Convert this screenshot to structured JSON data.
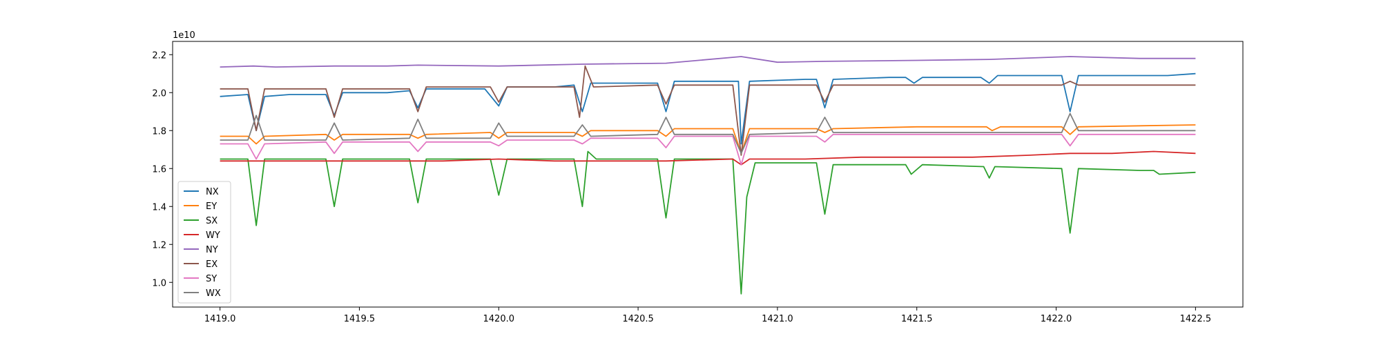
{
  "chart_data": {
    "type": "line",
    "title": "",
    "xlabel": "",
    "ylabel": "",
    "y_offset_text": "1e10",
    "y_scale": 10000000000,
    "xlim": [
      1418.83,
      1422.67
    ],
    "ylim": [
      0.87,
      2.27
    ],
    "x_ticks": [
      1419.0,
      1419.5,
      1420.0,
      1420.5,
      1421.0,
      1421.5,
      1422.0,
      1422.5
    ],
    "x_tick_labels": [
      "1419.0",
      "1419.5",
      "1420.0",
      "1420.5",
      "1421.0",
      "1421.5",
      "1422.0",
      "1422.5"
    ],
    "y_ticks": [
      1.0,
      1.2,
      1.4,
      1.6,
      1.8,
      2.0,
      2.2
    ],
    "y_tick_labels": [
      "1.0",
      "1.2",
      "1.4",
      "1.6",
      "1.8",
      "2.0",
      "2.2"
    ],
    "grid": false,
    "legend_position": "lower-left",
    "series": [
      {
        "name": "NX",
        "color": "#1f77b4",
        "x": [
          1419.0,
          1419.1,
          1419.13,
          1419.16,
          1419.25,
          1419.38,
          1419.41,
          1419.44,
          1419.6,
          1419.68,
          1419.71,
          1419.74,
          1419.95,
          1420.0,
          1420.03,
          1420.2,
          1420.27,
          1420.3,
          1420.33,
          1420.5,
          1420.57,
          1420.6,
          1420.63,
          1420.8,
          1420.86,
          1420.87,
          1420.9,
          1421.1,
          1421.14,
          1421.17,
          1421.2,
          1421.4,
          1421.46,
          1421.49,
          1421.52,
          1421.6,
          1421.73,
          1421.76,
          1421.79,
          1422.0,
          1422.02,
          1422.05,
          1422.08,
          1422.3,
          1422.4,
          1422.5
        ],
        "y": [
          1.98,
          1.99,
          1.8,
          1.98,
          1.99,
          1.99,
          1.88,
          2.0,
          2.0,
          2.01,
          1.92,
          2.02,
          2.02,
          1.93,
          2.03,
          2.03,
          2.04,
          1.9,
          2.05,
          2.05,
          2.05,
          1.9,
          2.06,
          2.06,
          2.06,
          1.73,
          2.06,
          2.07,
          2.07,
          1.92,
          2.07,
          2.08,
          2.08,
          2.05,
          2.08,
          2.08,
          2.08,
          2.05,
          2.09,
          2.09,
          2.09,
          1.9,
          2.09,
          2.09,
          2.09,
          2.1
        ]
      },
      {
        "name": "EY",
        "color": "#ff7f0e",
        "x": [
          1419.0,
          1419.1,
          1419.13,
          1419.16,
          1419.38,
          1419.41,
          1419.44,
          1419.68,
          1419.71,
          1419.74,
          1419.97,
          1420.0,
          1420.03,
          1420.27,
          1420.3,
          1420.33,
          1420.57,
          1420.6,
          1420.63,
          1420.84,
          1420.87,
          1420.9,
          1421.14,
          1421.17,
          1421.2,
          1421.5,
          1421.75,
          1421.77,
          1421.8,
          1422.02,
          1422.05,
          1422.08,
          1422.5
        ],
        "y": [
          1.77,
          1.77,
          1.73,
          1.77,
          1.78,
          1.75,
          1.78,
          1.78,
          1.76,
          1.78,
          1.79,
          1.76,
          1.79,
          1.79,
          1.77,
          1.8,
          1.8,
          1.77,
          1.81,
          1.81,
          1.68,
          1.81,
          1.81,
          1.79,
          1.81,
          1.82,
          1.82,
          1.8,
          1.82,
          1.82,
          1.78,
          1.82,
          1.83
        ]
      },
      {
        "name": "SX",
        "color": "#2ca02c",
        "x": [
          1419.0,
          1419.1,
          1419.13,
          1419.16,
          1419.38,
          1419.41,
          1419.44,
          1419.68,
          1419.71,
          1419.74,
          1419.97,
          1420.0,
          1420.03,
          1420.27,
          1420.3,
          1420.32,
          1420.35,
          1420.57,
          1420.6,
          1420.63,
          1420.84,
          1420.87,
          1420.89,
          1420.92,
          1421.14,
          1421.17,
          1421.2,
          1421.4,
          1421.46,
          1421.48,
          1421.52,
          1421.74,
          1421.76,
          1421.78,
          1422.02,
          1422.05,
          1422.08,
          1422.3,
          1422.35,
          1422.37,
          1422.5
        ],
        "y": [
          1.65,
          1.65,
          1.3,
          1.65,
          1.65,
          1.4,
          1.65,
          1.65,
          1.42,
          1.65,
          1.65,
          1.46,
          1.65,
          1.65,
          1.4,
          1.69,
          1.65,
          1.65,
          1.34,
          1.65,
          1.65,
          0.94,
          1.45,
          1.63,
          1.63,
          1.36,
          1.62,
          1.62,
          1.62,
          1.57,
          1.62,
          1.61,
          1.55,
          1.61,
          1.6,
          1.26,
          1.6,
          1.59,
          1.59,
          1.57,
          1.58
        ]
      },
      {
        "name": "WY",
        "color": "#d62728",
        "x": [
          1419.0,
          1419.2,
          1419.4,
          1419.6,
          1419.8,
          1420.0,
          1420.2,
          1420.4,
          1420.6,
          1420.84,
          1420.87,
          1420.9,
          1421.1,
          1421.3,
          1421.5,
          1421.7,
          1421.9,
          1422.05,
          1422.2,
          1422.35,
          1422.5
        ],
        "y": [
          1.64,
          1.64,
          1.64,
          1.64,
          1.64,
          1.65,
          1.64,
          1.64,
          1.64,
          1.65,
          1.62,
          1.65,
          1.65,
          1.66,
          1.66,
          1.66,
          1.67,
          1.68,
          1.68,
          1.69,
          1.68
        ]
      },
      {
        "name": "NY",
        "color": "#9467bd",
        "x": [
          1419.0,
          1419.12,
          1419.2,
          1419.41,
          1419.6,
          1419.71,
          1420.0,
          1420.3,
          1420.6,
          1420.87,
          1421.0,
          1421.17,
          1421.5,
          1421.76,
          1422.05,
          1422.3,
          1422.5
        ],
        "y": [
          2.135,
          2.14,
          2.135,
          2.14,
          2.14,
          2.145,
          2.14,
          2.15,
          2.155,
          2.19,
          2.16,
          2.165,
          2.17,
          2.175,
          2.19,
          2.18,
          2.18
        ]
      },
      {
        "name": "EX",
        "color": "#8c564b",
        "x": [
          1419.0,
          1419.1,
          1419.13,
          1419.16,
          1419.38,
          1419.41,
          1419.44,
          1419.68,
          1419.71,
          1419.74,
          1419.97,
          1420.0,
          1420.03,
          1420.27,
          1420.29,
          1420.31,
          1420.34,
          1420.57,
          1420.6,
          1420.63,
          1420.84,
          1420.87,
          1420.9,
          1421.14,
          1421.17,
          1421.2,
          1422.02,
          1422.05,
          1422.08,
          1422.5
        ],
        "y": [
          2.02,
          2.02,
          1.8,
          2.02,
          2.02,
          1.87,
          2.02,
          2.02,
          1.9,
          2.03,
          2.03,
          1.95,
          2.03,
          2.03,
          1.87,
          2.14,
          2.03,
          2.04,
          1.94,
          2.04,
          2.04,
          1.67,
          2.04,
          2.04,
          1.95,
          2.04,
          2.04,
          2.06,
          2.04,
          2.04
        ]
      },
      {
        "name": "SY",
        "color": "#e377c2",
        "x": [
          1419.0,
          1419.1,
          1419.13,
          1419.16,
          1419.38,
          1419.41,
          1419.44,
          1419.68,
          1419.71,
          1419.74,
          1419.97,
          1420.0,
          1420.03,
          1420.27,
          1420.3,
          1420.33,
          1420.57,
          1420.6,
          1420.63,
          1420.84,
          1420.87,
          1420.9,
          1421.14,
          1421.17,
          1421.2,
          1422.02,
          1422.05,
          1422.08,
          1422.5
        ],
        "y": [
          1.73,
          1.73,
          1.65,
          1.73,
          1.74,
          1.68,
          1.74,
          1.74,
          1.69,
          1.74,
          1.74,
          1.72,
          1.75,
          1.75,
          1.73,
          1.76,
          1.76,
          1.71,
          1.77,
          1.77,
          1.62,
          1.77,
          1.77,
          1.74,
          1.78,
          1.78,
          1.72,
          1.78,
          1.78
        ]
      },
      {
        "name": "WX",
        "color": "#7f7f7f",
        "x": [
          1419.0,
          1419.1,
          1419.13,
          1419.16,
          1419.38,
          1419.41,
          1419.44,
          1419.68,
          1419.71,
          1419.74,
          1419.97,
          1420.0,
          1420.03,
          1420.27,
          1420.3,
          1420.33,
          1420.57,
          1420.6,
          1420.63,
          1420.84,
          1420.87,
          1420.9,
          1421.14,
          1421.17,
          1421.2,
          1422.02,
          1422.05,
          1422.08,
          1422.5
        ],
        "y": [
          1.75,
          1.75,
          1.88,
          1.75,
          1.75,
          1.84,
          1.75,
          1.76,
          1.86,
          1.76,
          1.76,
          1.84,
          1.77,
          1.77,
          1.83,
          1.77,
          1.78,
          1.87,
          1.78,
          1.78,
          1.68,
          1.78,
          1.79,
          1.87,
          1.79,
          1.79,
          1.89,
          1.8,
          1.8
        ]
      }
    ]
  }
}
